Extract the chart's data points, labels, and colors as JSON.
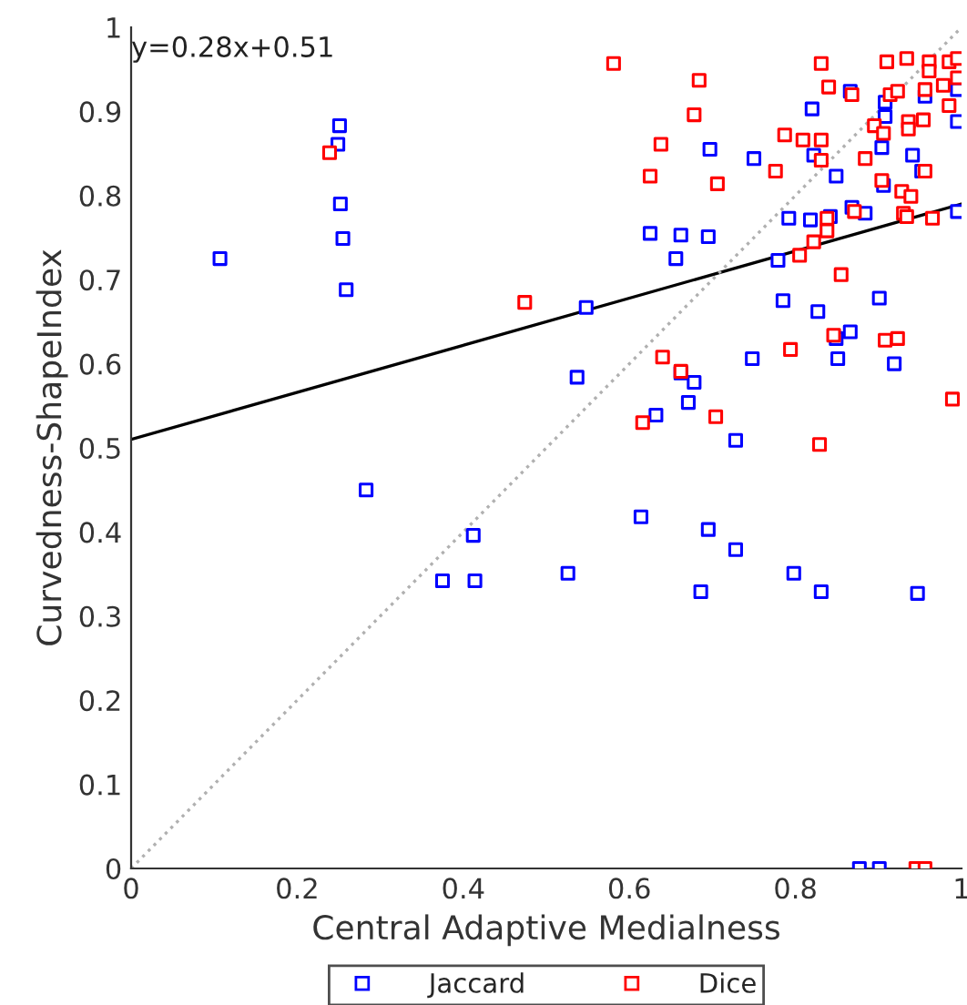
{
  "chart_data": {
    "type": "scatter",
    "xlabel": "Central Adaptive Medialness",
    "ylabel": "Curvedness-ShapeIndex",
    "xlim": [
      0,
      1
    ],
    "ylim": [
      0,
      1
    ],
    "xticks": [
      0,
      0.2,
      0.4,
      0.6,
      0.8,
      1
    ],
    "yticks": [
      0,
      0.1,
      0.2,
      0.3,
      0.4,
      0.5,
      0.6,
      0.7,
      0.8,
      0.9,
      1
    ],
    "grid": false,
    "legend": "bottom",
    "annotations": [
      "y=0.28x+0.51"
    ],
    "series": [
      {
        "name": "Jaccard",
        "color": "#0000ff",
        "marker": "square",
        "x": [
          0.107,
          0.283,
          0.251,
          0.249,
          0.252,
          0.255,
          0.259,
          0.412,
          0.375,
          0.414,
          0.526,
          0.614,
          0.695,
          0.686,
          0.728,
          0.798,
          0.831,
          0.947,
          0.877,
          0.901,
          0.728,
          0.866,
          0.908,
          0.82,
          0.956,
          0.995,
          0.908,
          0.995,
          0.697,
          0.75,
          0.822,
          0.904,
          0.941,
          0.952,
          0.849,
          0.906,
          0.868,
          0.884,
          0.842,
          0.818,
          0.792,
          0.995,
          0.625,
          0.662,
          0.695,
          0.656,
          0.779,
          0.548,
          0.785,
          0.827,
          0.901,
          0.866,
          0.849,
          0.748,
          0.851,
          0.919,
          0.537,
          0.662,
          0.678,
          0.671,
          0.632
        ],
        "values": [
          0.725,
          0.45,
          0.883,
          0.861,
          0.79,
          0.749,
          0.688,
          0.396,
          0.342,
          0.342,
          0.351,
          0.418,
          0.403,
          0.329,
          0.379,
          0.351,
          0.329,
          0.327,
          0,
          0,
          0.509,
          0.924,
          0.911,
          0.903,
          0.918,
          0.926,
          0.894,
          0.888,
          0.855,
          0.844,
          0.848,
          0.857,
          0.848,
          0.829,
          0.823,
          0.812,
          0.786,
          0.779,
          0.775,
          0.771,
          0.773,
          0.781,
          0.755,
          0.753,
          0.751,
          0.725,
          0.723,
          0.667,
          0.675,
          0.662,
          0.678,
          0.638,
          0.63,
          0.606,
          0.606,
          0.6,
          0.584,
          0.589,
          0.578,
          0.554,
          0.539
        ]
      },
      {
        "name": "Dice",
        "color": "#ff0000",
        "marker": "square",
        "x": [
          0.581,
          0.831,
          0.91,
          0.934,
          0.961,
          0.985,
          0.995,
          0.961,
          0.684,
          0.84,
          0.868,
          0.914,
          0.923,
          0.956,
          0.978,
          0.985,
          0.995,
          0.678,
          0.936,
          0.954,
          0.895,
          0.906,
          0.936,
          0.638,
          0.787,
          0.809,
          0.831,
          0.831,
          0.884,
          0.625,
          0.706,
          0.776,
          0.956,
          0.904,
          0.928,
          0.939,
          0.871,
          0.838,
          0.93,
          0.934,
          0.965,
          0.838,
          0.822,
          0.805,
          0.855,
          0.474,
          0.846,
          0.908,
          0.923,
          0.794,
          0.64,
          0.662,
          0.616,
          0.704,
          0.989,
          0.829,
          0.239,
          0.945,
          0.956
        ],
        "values": [
          0.957,
          0.957,
          0.959,
          0.963,
          0.959,
          0.959,
          0.963,
          0.948,
          0.937,
          0.929,
          0.92,
          0.92,
          0.924,
          0.926,
          0.931,
          0.907,
          0.94,
          0.896,
          0.888,
          0.89,
          0.883,
          0.874,
          0.879,
          0.861,
          0.872,
          0.866,
          0.866,
          0.842,
          0.844,
          0.823,
          0.814,
          0.829,
          0.829,
          0.818,
          0.805,
          0.799,
          0.781,
          0.773,
          0.779,
          0.775,
          0.773,
          0.758,
          0.745,
          0.729,
          0.706,
          0.673,
          0.634,
          0.628,
          0.63,
          0.617,
          0.608,
          0.591,
          0.53,
          0.537,
          0.558,
          0.504,
          0.851,
          0,
          0
        ]
      },
      {
        "type": "line",
        "color": "#000000",
        "line_style": "solid",
        "x": [
          0,
          1
        ],
        "values": [
          0.51,
          0.79
        ]
      },
      {
        "type": "line",
        "color": "#b0b0b0",
        "line_style": "dotted",
        "x": [
          0,
          1
        ],
        "values": [
          0,
          1
        ]
      }
    ]
  }
}
